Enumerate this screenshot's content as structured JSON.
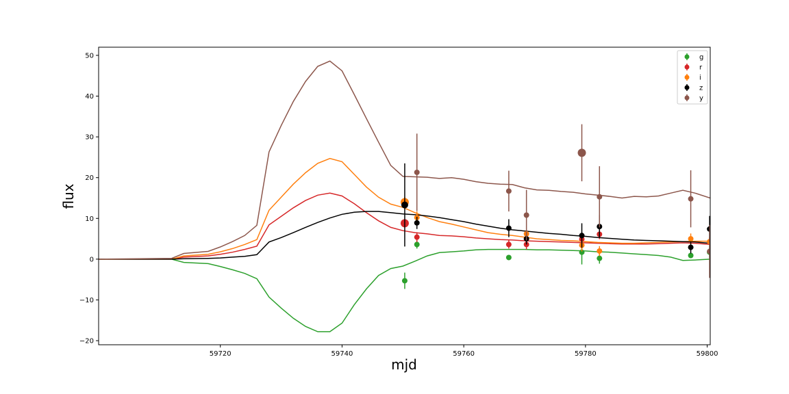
{
  "chart_data": {
    "type": "line",
    "xlabel": "mjd",
    "ylabel": "flux",
    "xlim": [
      59700,
      59800.5
    ],
    "ylim": [
      -21,
      52
    ],
    "x_ticks": [
      59720,
      59740,
      59760,
      59780,
      59800
    ],
    "y_ticks": [
      -20,
      -10,
      0,
      10,
      20,
      30,
      40,
      50
    ],
    "grid": false,
    "legend_placement": "top-right",
    "legend": [
      "g",
      "r",
      "i",
      "z",
      "y"
    ],
    "colors": {
      "g": "#2ca02c",
      "r": "#d62728",
      "i": "#ff7f0e",
      "z": "#000000",
      "y": "#8c564b"
    },
    "series": [
      {
        "name": "g",
        "kind": "model_line",
        "x": [
          59700,
          59712,
          59714,
          59718,
          59720,
          59722,
          59724,
          59726,
          59728,
          59730,
          59732,
          59734,
          59736,
          59738,
          59740,
          59742,
          59744,
          59746,
          59748,
          59750,
          59752,
          59754,
          59756,
          59758,
          59760,
          59762,
          59764,
          59766,
          59768,
          59770,
          59772,
          59774,
          59776,
          59778,
          59780,
          59782,
          59784,
          59786,
          59788,
          59790,
          59792,
          59794,
          59796,
          59798,
          59800.5
        ],
        "y": [
          0,
          0,
          -0.8,
          -1.1,
          -1.8,
          -2.6,
          -3.5,
          -4.8,
          -9.3,
          -12.0,
          -14.5,
          -16.5,
          -17.8,
          -17.8,
          -15.7,
          -11.2,
          -7.3,
          -4.0,
          -2.3,
          -1.7,
          -0.5,
          0.8,
          1.6,
          1.8,
          2.0,
          2.3,
          2.4,
          2.4,
          2.4,
          2.4,
          2.3,
          2.3,
          2.2,
          2.1,
          2.0,
          1.8,
          1.7,
          1.5,
          1.3,
          1.1,
          0.9,
          0.5,
          -0.3,
          -0.2,
          0
        ]
      },
      {
        "name": "r",
        "kind": "model_line",
        "x": [
          59700,
          59712,
          59714,
          59718,
          59720,
          59722,
          59724,
          59726,
          59728,
          59730,
          59732,
          59734,
          59736,
          59738,
          59740,
          59742,
          59744,
          59746,
          59748,
          59750,
          59752,
          59754,
          59756,
          59758,
          59760,
          59762,
          59764,
          59766,
          59768,
          59770,
          59772,
          59774,
          59776,
          59778,
          59780,
          59782,
          59784,
          59786,
          59788,
          59790,
          59792,
          59794,
          59796,
          59798,
          59800.5
        ],
        "y": [
          0,
          0,
          0.5,
          0.8,
          1.2,
          1.7,
          2.4,
          3.2,
          8.4,
          10.5,
          12.6,
          14.4,
          15.7,
          16.2,
          15.5,
          13.6,
          11.4,
          9.4,
          7.8,
          7.0,
          6.5,
          6.2,
          5.8,
          5.7,
          5.5,
          5.2,
          5.0,
          4.8,
          4.7,
          4.5,
          4.4,
          4.3,
          4.2,
          4.1,
          4.0,
          3.9,
          3.8,
          3.7,
          3.7,
          3.7,
          3.8,
          3.9,
          4.0,
          3.9,
          3.6
        ]
      },
      {
        "name": "i",
        "kind": "model_line",
        "x": [
          59700,
          59712,
          59714,
          59718,
          59720,
          59722,
          59724,
          59726,
          59728,
          59730,
          59732,
          59734,
          59736,
          59738,
          59740,
          59742,
          59744,
          59746,
          59748,
          59750,
          59752,
          59754,
          59756,
          59758,
          59760,
          59762,
          59764,
          59766,
          59768,
          59770,
          59772,
          59774,
          59776,
          59778,
          59780,
          59782,
          59784,
          59786,
          59788,
          59790,
          59792,
          59794,
          59796,
          59798,
          59800.5
        ],
        "y": [
          0,
          0,
          0.8,
          1.2,
          1.8,
          2.6,
          3.6,
          4.8,
          12.0,
          15.2,
          18.4,
          21.2,
          23.5,
          24.7,
          23.9,
          20.8,
          17.7,
          15.2,
          13.5,
          12.7,
          11.4,
          10.2,
          9.2,
          8.6,
          7.9,
          7.2,
          6.5,
          6.1,
          5.8,
          5.4,
          5.0,
          4.8,
          4.6,
          4.5,
          4.3,
          4.1,
          4.0,
          3.9,
          3.9,
          4.0,
          4.1,
          4.2,
          4.3,
          4.4,
          4.4
        ]
      },
      {
        "name": "z",
        "kind": "model_line",
        "x": [
          59700,
          59712,
          59714,
          59718,
          59720,
          59722,
          59724,
          59726,
          59728,
          59730,
          59732,
          59734,
          59736,
          59738,
          59740,
          59742,
          59744,
          59746,
          59748,
          59750,
          59752,
          59754,
          59756,
          59758,
          59760,
          59762,
          59764,
          59766,
          59768,
          59770,
          59772,
          59774,
          59776,
          59778,
          59780,
          59782,
          59784,
          59786,
          59788,
          59790,
          59792,
          59794,
          59796,
          59798,
          59800.5
        ],
        "y": [
          0,
          0,
          0.1,
          0.2,
          0.3,
          0.5,
          0.7,
          1.1,
          4.2,
          5.3,
          6.5,
          7.8,
          9.0,
          10.1,
          11.0,
          11.5,
          11.7,
          11.7,
          11.4,
          11.1,
          10.9,
          10.6,
          10.2,
          9.7,
          9.2,
          8.6,
          8.1,
          7.6,
          7.2,
          6.9,
          6.6,
          6.3,
          6.1,
          5.8,
          5.6,
          5.3,
          5.1,
          4.9,
          4.7,
          4.6,
          4.5,
          4.4,
          4.3,
          4.2,
          3.9
        ]
      },
      {
        "name": "y",
        "kind": "model_line",
        "x": [
          59700,
          59712,
          59714,
          59718,
          59720,
          59722,
          59724,
          59726,
          59728,
          59730,
          59732,
          59734,
          59736,
          59738,
          59740,
          59742,
          59744,
          59746,
          59748,
          59750,
          59752,
          59754,
          59756,
          59758,
          59760,
          59762,
          59764,
          59766,
          59768,
          59770,
          59772,
          59774,
          59776,
          59778,
          59780,
          59782,
          59784,
          59786,
          59788,
          59790,
          59792,
          59794,
          59796,
          59798,
          59800.5
        ],
        "y": [
          0,
          0.2,
          1.4,
          1.9,
          3.0,
          4.3,
          5.8,
          8.3,
          26.3,
          32.8,
          38.7,
          43.6,
          47.3,
          48.6,
          46.2,
          40.4,
          34.5,
          28.7,
          23.0,
          20.3,
          20.2,
          20.1,
          19.8,
          20.0,
          19.6,
          19.0,
          18.6,
          18.4,
          18.3,
          17.5,
          17.0,
          16.9,
          16.6,
          16.4,
          16.0,
          15.7,
          15.4,
          15.0,
          15.4,
          15.3,
          15.5,
          16.2,
          16.9,
          16.2,
          15.0
        ]
      }
    ],
    "observations": {
      "g": [
        {
          "x": 59750.3,
          "y": -5.3,
          "err": 2.0,
          "size": 4
        },
        {
          "x": 59752.3,
          "y": 3.6,
          "err": 1.0,
          "size": 4
        },
        {
          "x": 59767.4,
          "y": 0.4,
          "err": 0.6,
          "size": 4
        },
        {
          "x": 59779.4,
          "y": 1.7,
          "err": 3.0,
          "size": 4
        },
        {
          "x": 59782.3,
          "y": 0.2,
          "err": 1.3,
          "size": 4
        },
        {
          "x": 59797.3,
          "y": 0.9,
          "err": 0.6,
          "size": 4
        },
        {
          "x": 59800.4,
          "y": 1.7,
          "err": 1.4,
          "size": 4
        }
      ],
      "r": [
        {
          "x": 59750.3,
          "y": 8.8,
          "err": 0.8,
          "size": 6
        },
        {
          "x": 59752.3,
          "y": 5.4,
          "err": 1.2,
          "size": 4
        },
        {
          "x": 59767.4,
          "y": 3.6,
          "err": 1.0,
          "size": 4
        },
        {
          "x": 59770.3,
          "y": 3.6,
          "err": 1.2,
          "size": 4
        },
        {
          "x": 59779.4,
          "y": 4.9,
          "err": 1.0,
          "size": 4
        },
        {
          "x": 59782.3,
          "y": 6.1,
          "err": 1.2,
          "size": 4
        }
      ],
      "i": [
        {
          "x": 59750.3,
          "y": 14.0,
          "err": 1.2,
          "size": 6
        },
        {
          "x": 59752.3,
          "y": 10.2,
          "err": 1.5,
          "size": 4
        },
        {
          "x": 59770.3,
          "y": 6.2,
          "err": 1.0,
          "size": 4
        },
        {
          "x": 59779.4,
          "y": 3.4,
          "err": 1.5,
          "size": 4
        },
        {
          "x": 59782.3,
          "y": 2.0,
          "err": 1.2,
          "size": 4
        },
        {
          "x": 59797.3,
          "y": 5.0,
          "err": 1.3,
          "size": 4
        },
        {
          "x": 59800.4,
          "y": 4.3,
          "err": 1.2,
          "size": 4
        }
      ],
      "z": [
        {
          "x": 59750.3,
          "y": 13.3,
          "err": 10.2,
          "size": 5
        },
        {
          "x": 59752.3,
          "y": 8.9,
          "err": 1.5,
          "size": 4
        },
        {
          "x": 59767.4,
          "y": 7.6,
          "err": 2.2,
          "size": 4
        },
        {
          "x": 59770.3,
          "y": 5.0,
          "err": 1.4,
          "size": 4
        },
        {
          "x": 59779.4,
          "y": 5.8,
          "err": 3.0,
          "size": 4
        },
        {
          "x": 59782.3,
          "y": 8.0,
          "err": 2.8,
          "size": 4
        },
        {
          "x": 59797.3,
          "y": 2.9,
          "err": 1.5,
          "size": 4
        },
        {
          "x": 59800.4,
          "y": 7.4,
          "err": 3.2,
          "size": 4
        }
      ],
      "y": [
        {
          "x": 59752.3,
          "y": 21.3,
          "err": 9.5,
          "size": 4
        },
        {
          "x": 59767.4,
          "y": 16.7,
          "err": 5.0,
          "size": 4
        },
        {
          "x": 59770.3,
          "y": 10.8,
          "err": 6.2,
          "size": 4
        },
        {
          "x": 59779.4,
          "y": 26.1,
          "err": 7.0,
          "size": 6
        },
        {
          "x": 59782.3,
          "y": 15.3,
          "err": 7.5,
          "size": 4
        },
        {
          "x": 59797.3,
          "y": 14.8,
          "err": 7.0,
          "size": 4
        },
        {
          "x": 59800.4,
          "y": 1.9,
          "err": 6.5,
          "size": 4
        }
      ]
    }
  }
}
